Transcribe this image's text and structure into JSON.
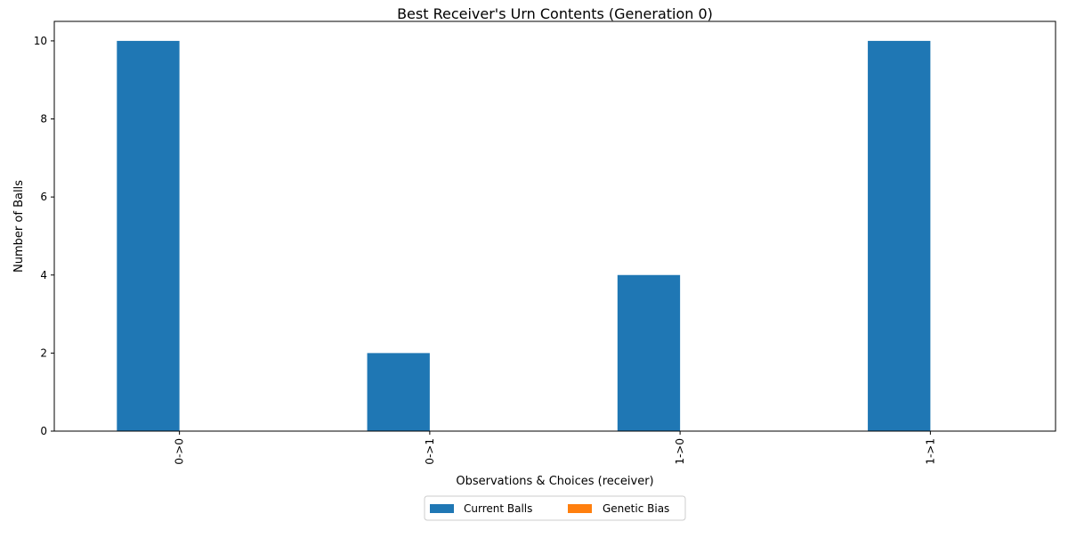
{
  "chart_data": {
    "type": "bar",
    "title": "Best Receiver's Urn Contents (Generation 0)",
    "xlabel": "Observations & Choices (receiver)",
    "ylabel": "Number of Balls",
    "categories": [
      "0->0",
      "0->1",
      "1->0",
      "1->1"
    ],
    "series": [
      {
        "name": "Current Balls",
        "values": [
          10,
          2,
          4,
          10
        ],
        "color": "#1f77b4"
      },
      {
        "name": "Genetic Bias",
        "values": [
          0,
          0,
          0,
          0
        ],
        "color": "#ff7f0e"
      }
    ],
    "ylim": [
      0,
      10.5
    ],
    "yticks": [
      "0",
      "2",
      "4",
      "6",
      "8",
      "10"
    ],
    "grid": false,
    "legend_position": "bottom-center",
    "x_tick_rotation": "vertical"
  }
}
